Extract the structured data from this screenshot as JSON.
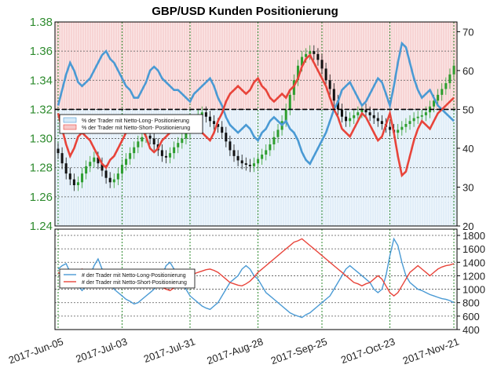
{
  "title": "GBP/USD Kunden Positionierung",
  "colors": {
    "long": "#4a9ad4",
    "short": "#e8443a",
    "up_candle": "#2e9e2e",
    "down_candle": "#111111",
    "left_axis": "#2e8b2e"
  },
  "x_tick_labels": [
    "2017-Jun-05",
    "2017-Jul-03",
    "2017-Jul-31",
    "2017-Aug-28",
    "2017-Sep-25",
    "2017-Oct-23",
    "2017-Nov-21"
  ],
  "chart_data": [
    {
      "type": "line",
      "title": "GBP/USD Kunden Positionierung",
      "left_axis": {
        "ticks": [
          "1.24",
          "1.26",
          "1.28",
          "1.30",
          "1.32",
          "1.34",
          "1.36",
          "1.38"
        ],
        "range": [
          1.24,
          1.38
        ]
      },
      "right_axis": {
        "ticks": [
          "20",
          "30",
          "40",
          "50",
          "60",
          "70"
        ],
        "range": [
          20,
          72.5
        ]
      },
      "reference_line": 50,
      "legend": {
        "placement": "left",
        "entries": [
          "% der Trader mit Netto-Long- Positionierung",
          "% der Trader mit Netto-Short- Positionierung"
        ]
      },
      "price_close": [
        1.29,
        1.283,
        1.276,
        1.272,
        1.268,
        1.27,
        1.276,
        1.281,
        1.284,
        1.287,
        1.283,
        1.278,
        1.273,
        1.27,
        1.272,
        1.276,
        1.282,
        1.286,
        1.29,
        1.294,
        1.298,
        1.301,
        1.302,
        1.3,
        1.296,
        1.292,
        1.288,
        1.287,
        1.29,
        1.294,
        1.297,
        1.3,
        1.304,
        1.308,
        1.312,
        1.316,
        1.318,
        1.315,
        1.312,
        1.31,
        1.308,
        1.304,
        1.298,
        1.292,
        1.288,
        1.285,
        1.283,
        1.282,
        1.281,
        1.283,
        1.286,
        1.289,
        1.292,
        1.296,
        1.301,
        1.306,
        1.312,
        1.32,
        1.33,
        1.34,
        1.35,
        1.356,
        1.358,
        1.36,
        1.358,
        1.354,
        1.348,
        1.34,
        1.334,
        1.326,
        1.32,
        1.315,
        1.312,
        1.314,
        1.316,
        1.318,
        1.32,
        1.318,
        1.316,
        1.314,
        1.312,
        1.31,
        1.308,
        1.306,
        1.304,
        1.306,
        1.308,
        1.31,
        1.312,
        1.314,
        1.315,
        1.316,
        1.318,
        1.322,
        1.326,
        1.33,
        1.334,
        1.338,
        1.344,
        1.35
      ],
      "percent_long": [
        51,
        55,
        59,
        62,
        60,
        57,
        56,
        57,
        58,
        60,
        62,
        64,
        65,
        63,
        62,
        60,
        58,
        56,
        55,
        53,
        53,
        55,
        57,
        60,
        61,
        60,
        58,
        57,
        56,
        55,
        55,
        54,
        53,
        52,
        54,
        55,
        56,
        57,
        58,
        56,
        53,
        51,
        48,
        46,
        45,
        44,
        45,
        46,
        45,
        43,
        42,
        44,
        45,
        47,
        48,
        47,
        46,
        47,
        45,
        44,
        42,
        39,
        37,
        36,
        38,
        40,
        42,
        44,
        47,
        50,
        52,
        55,
        56,
        57,
        55,
        53,
        51,
        52,
        54,
        56,
        58,
        57,
        54,
        51,
        56,
        62,
        67,
        66,
        62,
        58,
        55,
        53,
        54,
        55,
        53,
        51,
        50,
        49,
        48,
        47
      ],
      "percent_short": [
        49,
        45,
        41,
        38,
        40,
        43,
        44,
        43,
        42,
        40,
        38,
        36,
        35,
        37,
        38,
        40,
        42,
        44,
        45,
        47,
        47,
        45,
        43,
        40,
        39,
        40,
        42,
        43,
        44,
        45,
        45,
        46,
        47,
        48,
        46,
        45,
        44,
        43,
        42,
        44,
        47,
        49,
        52,
        54,
        55,
        56,
        55,
        54,
        55,
        57,
        58,
        56,
        55,
        53,
        52,
        53,
        54,
        53,
        55,
        56,
        58,
        61,
        63,
        64,
        62,
        60,
        58,
        56,
        53,
        50,
        48,
        45,
        44,
        43,
        45,
        47,
        49,
        48,
        46,
        44,
        42,
        43,
        46,
        49,
        44,
        38,
        33,
        34,
        38,
        42,
        45,
        47,
        46,
        45,
        47,
        49,
        50,
        51,
        52,
        53
      ]
    },
    {
      "type": "line",
      "right_axis": {
        "ticks": [
          "400",
          "600",
          "800",
          "1000",
          "1200",
          "1400",
          "1600",
          "1800"
        ],
        "range": [
          400,
          1800
        ]
      },
      "legend": {
        "placement": "left",
        "entries": [
          "# der Trader mit Netto-Long-Positionierung",
          "# der Trader mit Netto-Short-Positionierung"
        ]
      },
      "count_long": [
        1300,
        1350,
        1380,
        1250,
        1150,
        1050,
        980,
        1050,
        1200,
        1350,
        1450,
        1300,
        1200,
        1100,
        1000,
        950,
        900,
        850,
        820,
        780,
        800,
        850,
        900,
        950,
        1000,
        1100,
        1200,
        1350,
        1400,
        1300,
        1200,
        1100,
        1000,
        900,
        850,
        800,
        750,
        720,
        700,
        750,
        800,
        900,
        1000,
        1100,
        1150,
        1200,
        1300,
        1350,
        1300,
        1200,
        1150,
        1050,
        950,
        900,
        850,
        800,
        750,
        700,
        650,
        620,
        600,
        580,
        620,
        650,
        700,
        750,
        800,
        850,
        900,
        1000,
        1100,
        1200,
        1300,
        1350,
        1300,
        1250,
        1200,
        1150,
        1100,
        1000,
        950,
        1000,
        1200,
        1500,
        1750,
        1650,
        1400,
        1200,
        1100,
        1050,
        1000,
        980,
        950,
        920,
        900,
        880,
        860,
        850,
        830,
        800
      ],
      "count_short": [
        1250,
        1200,
        1150,
        1180,
        1220,
        1260,
        1300,
        1250,
        1200,
        1150,
        1100,
        1120,
        1150,
        1180,
        1200,
        1220,
        1250,
        1230,
        1200,
        1180,
        1150,
        1120,
        1100,
        1080,
        1060,
        1050,
        1030,
        1000,
        980,
        1020,
        1060,
        1100,
        1150,
        1200,
        1230,
        1250,
        1270,
        1290,
        1300,
        1280,
        1250,
        1200,
        1150,
        1100,
        1080,
        1060,
        1050,
        1080,
        1120,
        1180,
        1250,
        1300,
        1350,
        1400,
        1450,
        1500,
        1550,
        1600,
        1650,
        1700,
        1720,
        1750,
        1700,
        1650,
        1600,
        1550,
        1500,
        1450,
        1400,
        1350,
        1300,
        1250,
        1200,
        1150,
        1100,
        1080,
        1050,
        1080,
        1100,
        1150,
        1200,
        1150,
        1050,
        950,
        900,
        950,
        1050,
        1150,
        1250,
        1300,
        1350,
        1300,
        1250,
        1200,
        1250,
        1300,
        1330,
        1350,
        1360,
        1380
      ]
    }
  ]
}
